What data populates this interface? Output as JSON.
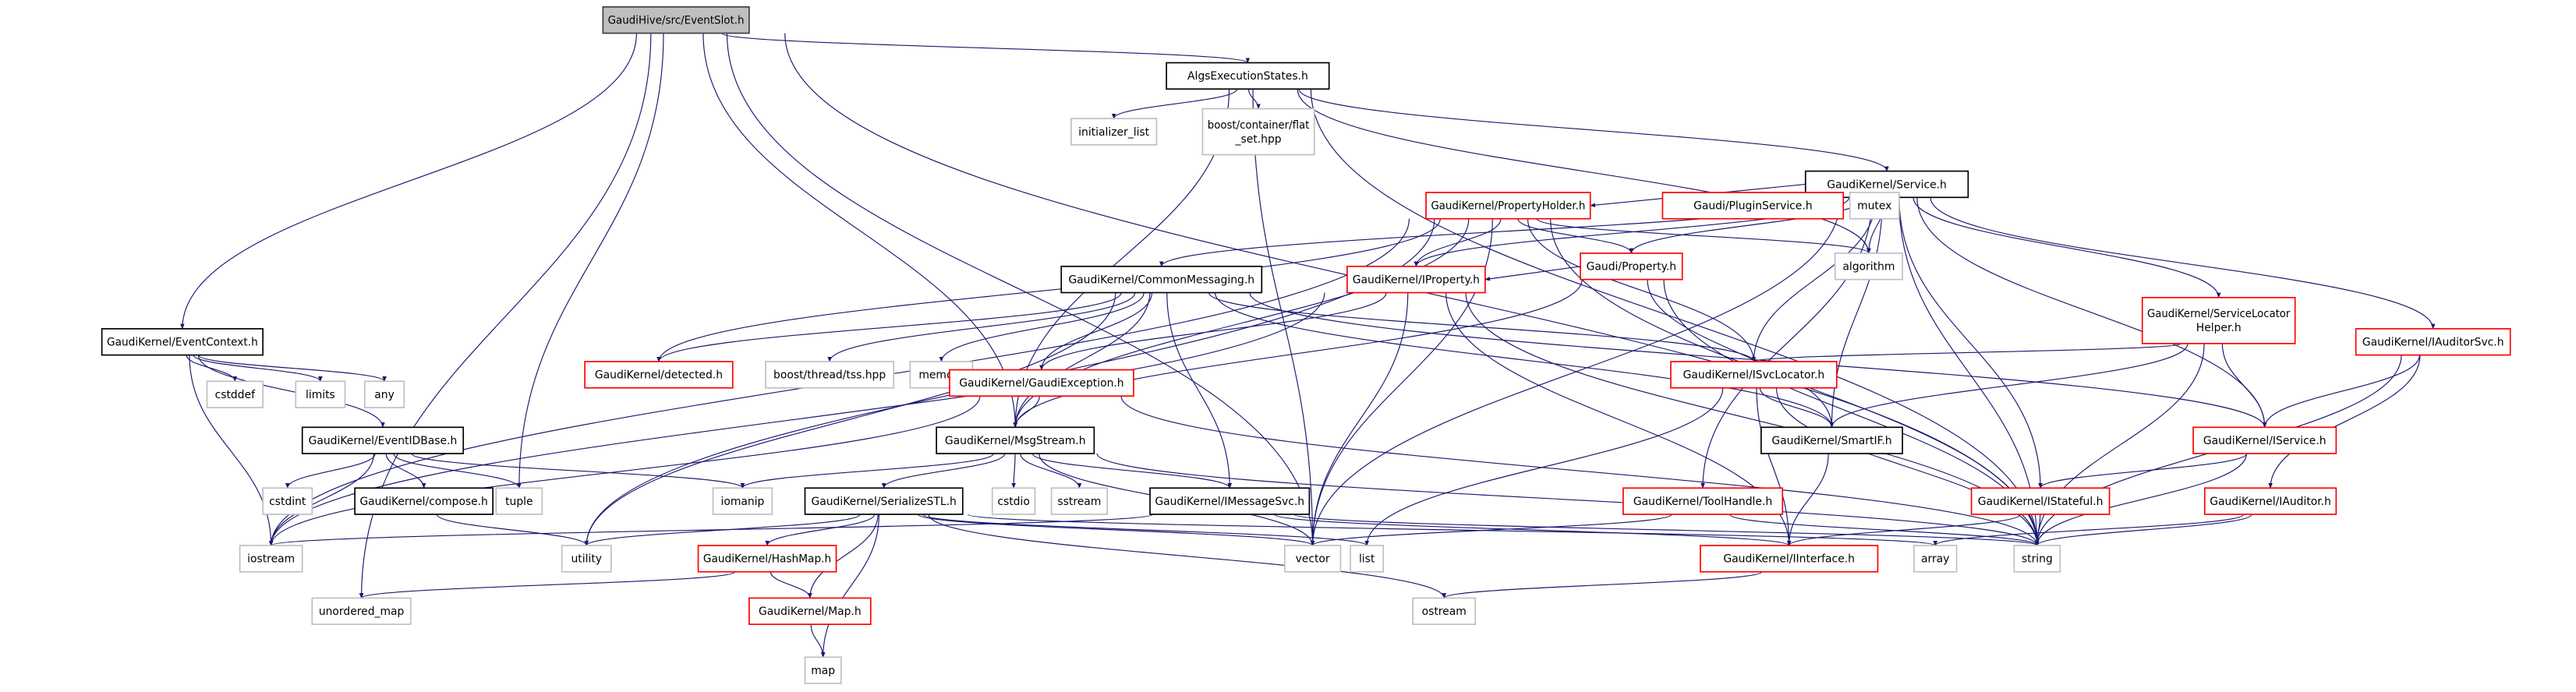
{
  "colors": {
    "edge": "#191970",
    "root_fill": "#bfbfbf",
    "root_border": "#404040",
    "documented_border": "#000000",
    "truncated_border": "#ff0000",
    "external_border": "#bfbfbf",
    "node_fill": "#ffffff"
  },
  "nodes": [
    {
      "id": "eventslot",
      "label": [
        "GaudiHive/src/EventSlot.h"
      ],
      "kind": "root"
    },
    {
      "id": "algsexec",
      "label": [
        "AlgsExecutionStates.h"
      ],
      "kind": "documented"
    },
    {
      "id": "initlist",
      "label": [
        "initializer_list"
      ],
      "kind": "external"
    },
    {
      "id": "flatset",
      "label": [
        "boost/container/flat",
        "_set.hpp"
      ],
      "kind": "external"
    },
    {
      "id": "service",
      "label": [
        "GaudiKernel/Service.h"
      ],
      "kind": "documented"
    },
    {
      "id": "propholder",
      "label": [
        "GaudiKernel/PropertyHolder.h"
      ],
      "kind": "truncated"
    },
    {
      "id": "pluginsvc",
      "label": [
        "Gaudi/PluginService.h"
      ],
      "kind": "truncated"
    },
    {
      "id": "mutex",
      "label": [
        "mutex"
      ],
      "kind": "external"
    },
    {
      "id": "property",
      "label": [
        "Gaudi/Property.h"
      ],
      "kind": "truncated"
    },
    {
      "id": "algorithm",
      "label": [
        "algorithm"
      ],
      "kind": "external"
    },
    {
      "id": "commonmsg",
      "label": [
        "GaudiKernel/CommonMessaging.h"
      ],
      "kind": "documented"
    },
    {
      "id": "iproperty",
      "label": [
        "GaudiKernel/IProperty.h"
      ],
      "kind": "truncated"
    },
    {
      "id": "svclochelper",
      "label": [
        "GaudiKernel/ServiceLocator",
        "Helper.h"
      ],
      "kind": "truncated"
    },
    {
      "id": "iauditorsvc",
      "label": [
        "GaudiKernel/IAuditorSvc.h"
      ],
      "kind": "truncated"
    },
    {
      "id": "eventcontext",
      "label": [
        "GaudiKernel/EventContext.h"
      ],
      "kind": "documented"
    },
    {
      "id": "cstddef",
      "label": [
        "cstddef"
      ],
      "kind": "external"
    },
    {
      "id": "limits",
      "label": [
        "limits"
      ],
      "kind": "external"
    },
    {
      "id": "any",
      "label": [
        "any"
      ],
      "kind": "external"
    },
    {
      "id": "detected",
      "label": [
        "GaudiKernel/detected.h"
      ],
      "kind": "truncated"
    },
    {
      "id": "tss",
      "label": [
        "boost/thread/tss.hpp"
      ],
      "kind": "external"
    },
    {
      "id": "memory",
      "label": [
        "memory"
      ],
      "kind": "external"
    },
    {
      "id": "gaudiexc",
      "label": [
        "GaudiKernel/GaudiException.h"
      ],
      "kind": "truncated"
    },
    {
      "id": "isvclocator",
      "label": [
        "GaudiKernel/ISvcLocator.h"
      ],
      "kind": "truncated"
    },
    {
      "id": "eventidbase",
      "label": [
        "GaudiKernel/EventIDBase.h"
      ],
      "kind": "documented"
    },
    {
      "id": "msgstream",
      "label": [
        "GaudiKernel/MsgStream.h"
      ],
      "kind": "documented"
    },
    {
      "id": "smartif",
      "label": [
        "GaudiKernel/SmartIF.h"
      ],
      "kind": "documented"
    },
    {
      "id": "iservice",
      "label": [
        "GaudiKernel/IService.h"
      ],
      "kind": "truncated"
    },
    {
      "id": "cstdint",
      "label": [
        "cstdint"
      ],
      "kind": "external"
    },
    {
      "id": "compose",
      "label": [
        "GaudiKernel/compose.h"
      ],
      "kind": "documented"
    },
    {
      "id": "tuple",
      "label": [
        "tuple"
      ],
      "kind": "external"
    },
    {
      "id": "iomanip",
      "label": [
        "iomanip"
      ],
      "kind": "external"
    },
    {
      "id": "serializestl",
      "label": [
        "GaudiKernel/SerializeSTL.h"
      ],
      "kind": "documented"
    },
    {
      "id": "cstdio",
      "label": [
        "cstdio"
      ],
      "kind": "external"
    },
    {
      "id": "sstream",
      "label": [
        "sstream"
      ],
      "kind": "external"
    },
    {
      "id": "imessagesvc",
      "label": [
        "GaudiKernel/IMessageSvc.h"
      ],
      "kind": "documented"
    },
    {
      "id": "toolhandle",
      "label": [
        "GaudiKernel/ToolHandle.h"
      ],
      "kind": "truncated"
    },
    {
      "id": "istateful",
      "label": [
        "GaudiKernel/IStateful.h"
      ],
      "kind": "truncated"
    },
    {
      "id": "iauditor",
      "label": [
        "GaudiKernel/IAuditor.h"
      ],
      "kind": "truncated"
    },
    {
      "id": "iostream",
      "label": [
        "iostream"
      ],
      "kind": "external"
    },
    {
      "id": "utility",
      "label": [
        "utility"
      ],
      "kind": "external"
    },
    {
      "id": "hashmap",
      "label": [
        "GaudiKernel/HashMap.h"
      ],
      "kind": "truncated"
    },
    {
      "id": "vector",
      "label": [
        "vector"
      ],
      "kind": "external"
    },
    {
      "id": "list",
      "label": [
        "list"
      ],
      "kind": "external"
    },
    {
      "id": "iinterface",
      "label": [
        "GaudiKernel/IInterface.h"
      ],
      "kind": "truncated"
    },
    {
      "id": "array",
      "label": [
        "array"
      ],
      "kind": "external"
    },
    {
      "id": "string",
      "label": [
        "string"
      ],
      "kind": "external"
    },
    {
      "id": "unorderedmap",
      "label": [
        "unordered_map"
      ],
      "kind": "external"
    },
    {
      "id": "map_h",
      "label": [
        "GaudiKernel/Map.h"
      ],
      "kind": "truncated"
    },
    {
      "id": "ostream",
      "label": [
        "ostream"
      ],
      "kind": "external"
    },
    {
      "id": "map",
      "label": [
        "map"
      ],
      "kind": "external"
    }
  ],
  "edges": [
    [
      "eventslot",
      "algsexec"
    ],
    [
      "eventslot",
      "eventcontext"
    ],
    [
      "eventslot",
      "unorderedmap"
    ],
    [
      "eventslot",
      "tuple"
    ],
    [
      "eventslot",
      "msgstream"
    ],
    [
      "eventslot",
      "vector"
    ],
    [
      "eventslot",
      "string"
    ],
    [
      "algsexec",
      "initlist"
    ],
    [
      "algsexec",
      "flatset"
    ],
    [
      "algsexec",
      "service"
    ],
    [
      "algsexec",
      "msgstream"
    ],
    [
      "algsexec",
      "vector"
    ],
    [
      "algsexec",
      "string"
    ],
    [
      "algsexec",
      "algorithm"
    ],
    [
      "service",
      "propholder"
    ],
    [
      "service",
      "pluginsvc"
    ],
    [
      "service",
      "mutex"
    ],
    [
      "service",
      "algorithm"
    ],
    [
      "service",
      "property"
    ],
    [
      "service",
      "iproperty"
    ],
    [
      "service",
      "commonmsg"
    ],
    [
      "service",
      "isvclocator"
    ],
    [
      "service",
      "smartif"
    ],
    [
      "service",
      "iservice"
    ],
    [
      "service",
      "istateful"
    ],
    [
      "service",
      "toolhandle"
    ],
    [
      "service",
      "svclochelper"
    ],
    [
      "service",
      "iauditorsvc"
    ],
    [
      "service",
      "string"
    ],
    [
      "service",
      "vector"
    ],
    [
      "propholder",
      "property"
    ],
    [
      "propholder",
      "iproperty"
    ],
    [
      "propholder",
      "isvclocator"
    ],
    [
      "propholder",
      "detected"
    ],
    [
      "propholder",
      "msgstream"
    ],
    [
      "propholder",
      "iostream"
    ],
    [
      "propholder",
      "utility"
    ],
    [
      "propholder",
      "vector"
    ],
    [
      "propholder",
      "string"
    ],
    [
      "propholder",
      "algorithm"
    ],
    [
      "property",
      "iproperty"
    ],
    [
      "property",
      "smartif"
    ],
    [
      "property",
      "string"
    ],
    [
      "property",
      "msgstream"
    ],
    [
      "iproperty",
      "gaudiexc"
    ],
    [
      "iproperty",
      "iinterface"
    ],
    [
      "iproperty",
      "vector"
    ],
    [
      "iproperty",
      "string"
    ],
    [
      "iproperty",
      "iostream"
    ],
    [
      "commonmsg",
      "detected"
    ],
    [
      "commonmsg",
      "tss"
    ],
    [
      "commonmsg",
      "memory"
    ],
    [
      "commonmsg",
      "gaudiexc"
    ],
    [
      "commonmsg",
      "msgstream"
    ],
    [
      "commonmsg",
      "imessagesvc"
    ],
    [
      "commonmsg",
      "smartif"
    ],
    [
      "commonmsg",
      "isvclocator"
    ],
    [
      "commonmsg",
      "iservice"
    ],
    [
      "commonmsg",
      "utility"
    ],
    [
      "svclochelper",
      "isvclocator"
    ],
    [
      "svclochelper",
      "smartif"
    ],
    [
      "svclochelper",
      "iservice"
    ],
    [
      "svclochelper",
      "string"
    ],
    [
      "iauditorsvc",
      "iservice"
    ],
    [
      "iauditorsvc",
      "iauditor"
    ],
    [
      "iauditorsvc",
      "string"
    ],
    [
      "eventcontext",
      "cstddef"
    ],
    [
      "eventcontext",
      "limits"
    ],
    [
      "eventcontext",
      "any"
    ],
    [
      "eventcontext",
      "eventidbase"
    ],
    [
      "eventcontext",
      "iostream"
    ],
    [
      "eventidbase",
      "cstdint"
    ],
    [
      "eventidbase",
      "compose"
    ],
    [
      "eventidbase",
      "tuple"
    ],
    [
      "eventidbase",
      "iomanip"
    ],
    [
      "eventidbase",
      "iostream"
    ],
    [
      "compose",
      "utility"
    ],
    [
      "gaudiexc",
      "msgstream"
    ],
    [
      "gaudiexc",
      "iostream"
    ],
    [
      "gaudiexc",
      "string"
    ],
    [
      "isvclocator",
      "smartif"
    ],
    [
      "isvclocator",
      "iinterface"
    ],
    [
      "isvclocator",
      "string"
    ],
    [
      "isvclocator",
      "list"
    ],
    [
      "smartif",
      "iinterface"
    ],
    [
      "iservice",
      "istateful"
    ],
    [
      "iservice",
      "string"
    ],
    [
      "msgstream",
      "iomanip"
    ],
    [
      "msgstream",
      "serializestl"
    ],
    [
      "msgstream",
      "cstdio"
    ],
    [
      "msgstream",
      "sstream"
    ],
    [
      "msgstream",
      "imessagesvc"
    ],
    [
      "msgstream",
      "vector"
    ],
    [
      "msgstream",
      "string"
    ],
    [
      "serializestl",
      "utility"
    ],
    [
      "serializestl",
      "hashmap"
    ],
    [
      "serializestl",
      "map_h"
    ],
    [
      "serializestl",
      "map"
    ],
    [
      "serializestl",
      "vector"
    ],
    [
      "serializestl",
      "list"
    ],
    [
      "serializestl",
      "array"
    ],
    [
      "serializestl",
      "ostream"
    ],
    [
      "imessagesvc",
      "iostream"
    ],
    [
      "imessagesvc",
      "iinterface"
    ],
    [
      "imessagesvc",
      "string"
    ],
    [
      "toolhandle",
      "vector"
    ],
    [
      "toolhandle",
      "string"
    ],
    [
      "istateful",
      "iinterface"
    ],
    [
      "istateful",
      "string"
    ],
    [
      "iauditor",
      "array"
    ],
    [
      "iauditor",
      "string"
    ],
    [
      "hashmap",
      "unorderedmap"
    ],
    [
      "hashmap",
      "map_h"
    ],
    [
      "map_h",
      "map"
    ],
    [
      "iinterface",
      "ostream"
    ]
  ]
}
